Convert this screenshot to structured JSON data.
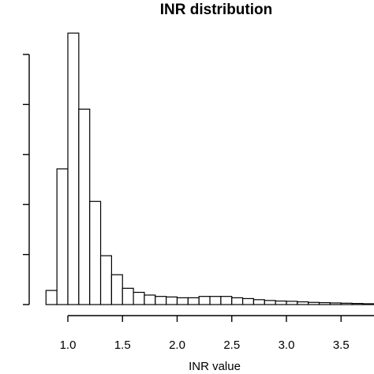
{
  "chart_data": {
    "type": "bar",
    "title": "INR distribution",
    "xlabel": "INR value",
    "ylabel": "",
    "xlim": [
      0.7,
      3.8
    ],
    "bin_width": 0.1,
    "x_ticks": [
      1.0,
      1.5,
      2.0,
      2.5,
      3.0,
      3.5
    ],
    "x_tick_labels": [
      "1.0",
      "1.5",
      "2.0",
      "2.5",
      "3.0",
      "3.5"
    ],
    "y_tick_count": 6,
    "bins": [
      {
        "x0": 0.8,
        "x1": 0.9,
        "count": 0.052
      },
      {
        "x0": 0.9,
        "x1": 1.0,
        "count": 0.5
      },
      {
        "x0": 1.0,
        "x1": 1.1,
        "count": 1.0
      },
      {
        "x0": 1.1,
        "x1": 1.2,
        "count": 0.72
      },
      {
        "x0": 1.2,
        "x1": 1.3,
        "count": 0.38
      },
      {
        "x0": 1.3,
        "x1": 1.4,
        "count": 0.18
      },
      {
        "x0": 1.4,
        "x1": 1.5,
        "count": 0.11
      },
      {
        "x0": 1.5,
        "x1": 1.6,
        "count": 0.06
      },
      {
        "x0": 1.6,
        "x1": 1.7,
        "count": 0.045
      },
      {
        "x0": 1.7,
        "x1": 1.8,
        "count": 0.035
      },
      {
        "x0": 1.8,
        "x1": 1.9,
        "count": 0.03
      },
      {
        "x0": 1.9,
        "x1": 2.0,
        "count": 0.028
      },
      {
        "x0": 2.0,
        "x1": 2.1,
        "count": 0.025
      },
      {
        "x0": 2.1,
        "x1": 2.2,
        "count": 0.025
      },
      {
        "x0": 2.2,
        "x1": 2.3,
        "count": 0.03
      },
      {
        "x0": 2.3,
        "x1": 2.4,
        "count": 0.03
      },
      {
        "x0": 2.4,
        "x1": 2.5,
        "count": 0.03
      },
      {
        "x0": 2.5,
        "x1": 2.6,
        "count": 0.025
      },
      {
        "x0": 2.6,
        "x1": 2.7,
        "count": 0.022
      },
      {
        "x0": 2.7,
        "x1": 2.8,
        "count": 0.018
      },
      {
        "x0": 2.8,
        "x1": 2.9,
        "count": 0.015
      },
      {
        "x0": 2.9,
        "x1": 3.0,
        "count": 0.013
      },
      {
        "x0": 3.0,
        "x1": 3.1,
        "count": 0.012
      },
      {
        "x0": 3.1,
        "x1": 3.2,
        "count": 0.01
      },
      {
        "x0": 3.2,
        "x1": 3.3,
        "count": 0.008
      },
      {
        "x0": 3.3,
        "x1": 3.4,
        "count": 0.007
      },
      {
        "x0": 3.4,
        "x1": 3.5,
        "count": 0.006
      },
      {
        "x0": 3.5,
        "x1": 3.6,
        "count": 0.005
      },
      {
        "x0": 3.6,
        "x1": 3.7,
        "count": 0.004
      },
      {
        "x0": 3.7,
        "x1": 3.8,
        "count": 0.003
      }
    ],
    "grid": false,
    "legend": "none"
  }
}
